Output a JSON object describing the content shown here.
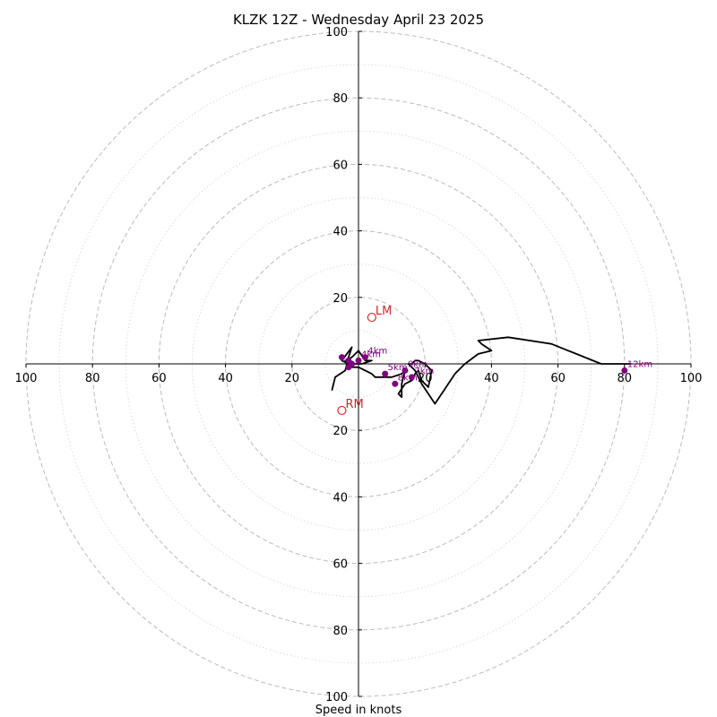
{
  "chart_data": {
    "type": "scatter",
    "title": "KLZK 12Z - Wednesday April 23 2025",
    "xlabel": "Speed in knots",
    "ylabel": "",
    "xlim": [
      -100,
      100
    ],
    "ylim": [
      -100,
      100
    ],
    "rings": [
      20,
      40,
      60,
      80,
      100
    ],
    "minor_rings": [
      10,
      30,
      50,
      70,
      90
    ],
    "tick_labels": [
      "100",
      "80",
      "60",
      "40",
      "20",
      "20",
      "40",
      "60",
      "80",
      "100"
    ],
    "hodograph_trace": {
      "u": [
        -8,
        -7,
        -4,
        -3,
        -2,
        -5,
        -3,
        1,
        4,
        2,
        0,
        -2,
        -4,
        -3,
        0,
        4,
        5,
        7,
        10,
        13,
        14,
        13,
        13,
        12,
        14,
        16,
        17,
        18,
        19,
        21,
        22,
        20,
        18,
        17,
        16,
        15,
        17,
        19,
        21,
        23,
        25,
        29,
        32,
        36,
        40,
        37,
        36,
        45,
        58,
        73,
        82
      ],
      "v": [
        -8,
        -4,
        -2,
        2,
        5,
        1,
        0,
        0,
        1,
        1,
        4,
        2,
        1,
        -1,
        -1,
        -3,
        -4,
        -4,
        -4,
        -3,
        -2,
        -6,
        -10,
        -9,
        -6,
        -5,
        -3,
        -2,
        -5,
        -7,
        -2,
        0,
        1,
        1,
        0,
        0,
        -2,
        -6,
        -9,
        -12,
        -9,
        -3,
        0,
        3,
        4,
        6,
        7,
        8,
        6,
        0,
        0
      ]
    },
    "height_markers": [
      {
        "label": "4km",
        "u": 2,
        "v": 2
      },
      {
        "label": "4km",
        "u": 0,
        "v": 1
      },
      {
        "label": "",
        "u": -5,
        "v": 2
      },
      {
        "label": "",
        "u": -3,
        "v": 1
      },
      {
        "label": "",
        "u": -3,
        "v": -1
      },
      {
        "label": "",
        "u": -2,
        "v": 0
      },
      {
        "label": "5km",
        "u": 8,
        "v": -3
      },
      {
        "label": "9km",
        "u": 14,
        "v": -2
      },
      {
        "label": "7km",
        "u": 16,
        "v": -4
      },
      {
        "label": "8km",
        "u": 11,
        "v": -6
      },
      {
        "label": "12km",
        "u": 80,
        "v": -2
      }
    ],
    "storm_motions": [
      {
        "label": "LM",
        "u": 4,
        "v": 14
      },
      {
        "label": "RM",
        "u": -5,
        "v": -14
      }
    ],
    "grid": true,
    "legend": "none",
    "colors": {
      "trace": "#000000",
      "height_marker": "#800080",
      "storm_motion": "#d62728",
      "grid": "#bbbbbb",
      "axis": "#000000"
    }
  }
}
